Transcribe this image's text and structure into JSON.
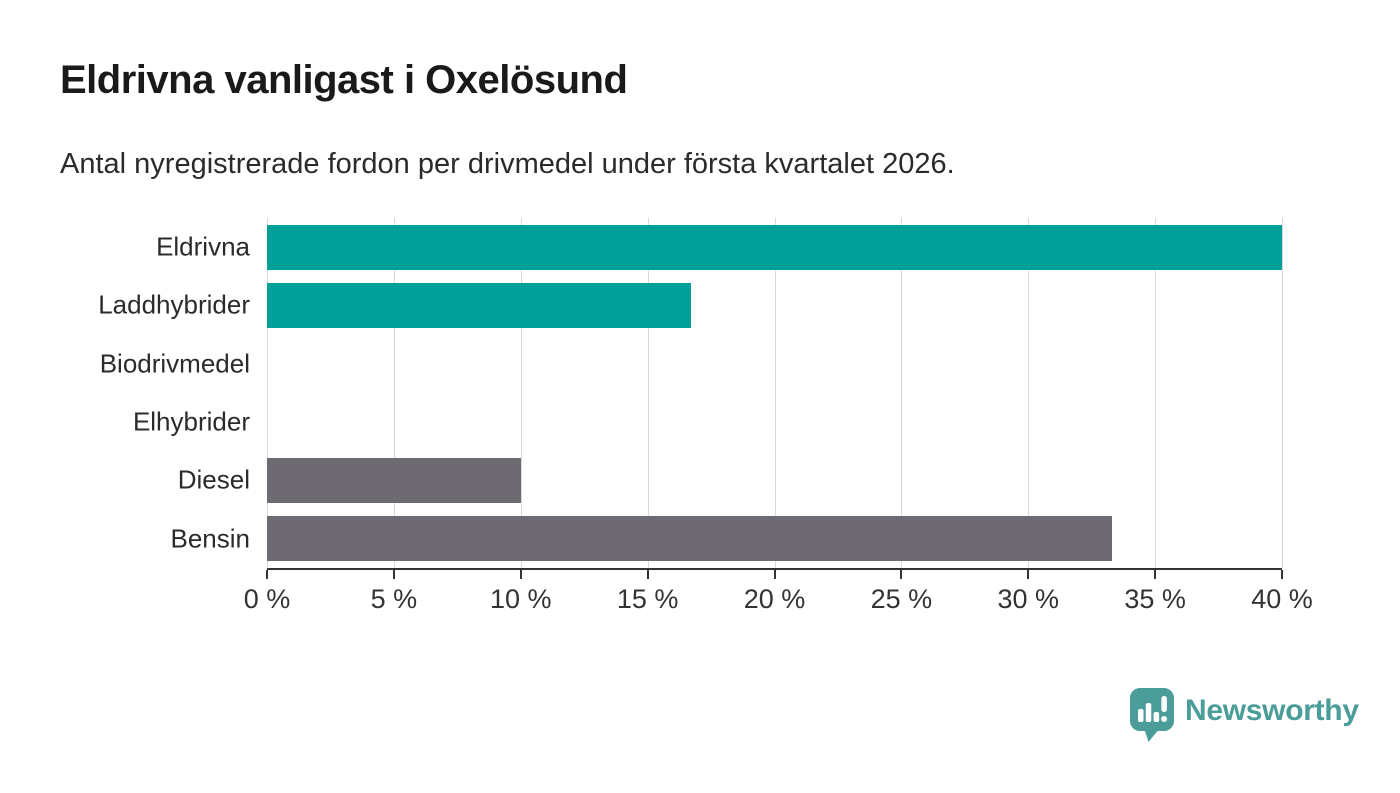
{
  "title": "Eldrivna vanligast i Oxelösund",
  "subtitle": "Antal nyregistrerade fordon per drivmedel under första kvartalet 2026.",
  "chart_data": {
    "type": "bar",
    "orientation": "horizontal",
    "title": "Eldrivna vanligast i Oxelösund",
    "subtitle": "Antal nyregistrerade fordon per drivmedel under första kvartalet 2026.",
    "categories": [
      "Eldrivna",
      "Laddhybrider",
      "Biodrivmedel",
      "Elhybrider",
      "Diesel",
      "Bensin"
    ],
    "values": [
      40,
      16.7,
      0,
      0,
      10,
      33.3
    ],
    "unit": "%",
    "xlim": [
      0,
      40
    ],
    "x_tick_values": [
      0,
      5,
      10,
      15,
      20,
      25,
      30,
      35,
      40
    ],
    "x_tick_labels": [
      "0 %",
      "5 %",
      "10 %",
      "15 %",
      "20 %",
      "25 %",
      "30 %",
      "35 %",
      "40 %"
    ],
    "grid": "vertical-light",
    "legend": "none",
    "bar_colors": [
      "#00a099",
      "#00a099",
      "#00a099",
      "#00a099",
      "#6e6a71",
      "#6e6a71"
    ]
  },
  "colors": {
    "accent_teal": "#00a099",
    "neutral_gray": "#6e6a71",
    "gridline": "#d9d9d9",
    "axis": "#333333",
    "logo_teal": "#4a9d98"
  },
  "branding": {
    "logo_text": "Newsworthy",
    "logo_icon": "pin-with-bar-chart-and-exclamation"
  }
}
